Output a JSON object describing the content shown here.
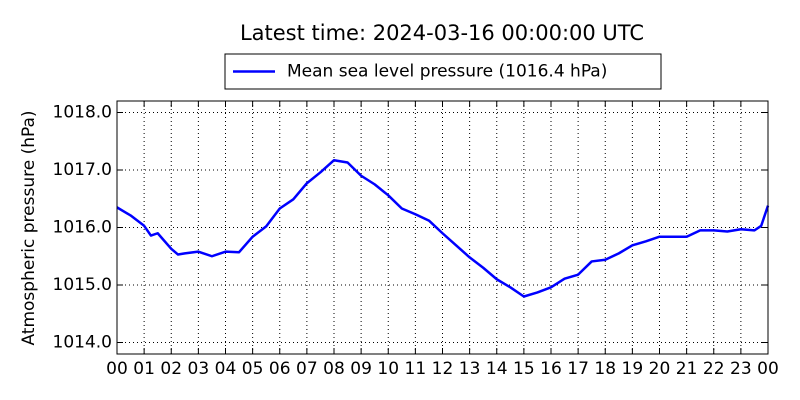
{
  "chart_data": {
    "type": "line",
    "title": "Latest time: 2024-03-16 00:00:00 UTC",
    "ylabel": "Atmospheric pressure (hPa)",
    "x": [
      0,
      0.5,
      1,
      1.25,
      1.5,
      2,
      2.25,
      2.5,
      3,
      3.5,
      4,
      4.5,
      5,
      5.5,
      6,
      6.5,
      7,
      7.5,
      8,
      8.5,
      9,
      9.5,
      10,
      10.5,
      11,
      11.5,
      12,
      12.5,
      13,
      13.5,
      14,
      14.5,
      15,
      15.5,
      16,
      16.5,
      17,
      17.5,
      18,
      18.5,
      19,
      19.5,
      20,
      20.5,
      21,
      21.5,
      22,
      22.5,
      23,
      23.5,
      23.75,
      24
    ],
    "series": [
      {
        "name": "Mean sea level pressure (1016.4 hPa)",
        "color": "#0000ff",
        "values": [
          1016.35,
          1016.21,
          1016.03,
          1015.86,
          1015.9,
          1015.63,
          1015.53,
          1015.55,
          1015.58,
          1015.5,
          1015.58,
          1015.57,
          1015.84,
          1016.02,
          1016.33,
          1016.49,
          1016.77,
          1016.96,
          1017.17,
          1017.13,
          1016.9,
          1016.75,
          1016.56,
          1016.33,
          1016.23,
          1016.12,
          1015.9,
          1015.69,
          1015.48,
          1015.3,
          1015.1,
          1014.96,
          1014.8,
          1014.87,
          1014.96,
          1015.11,
          1015.18,
          1015.41,
          1015.44,
          1015.55,
          1015.69,
          1015.76,
          1015.84,
          1015.84,
          1015.84,
          1015.95,
          1015.95,
          1015.93,
          1015.97,
          1015.95,
          1016.03,
          1016.38
        ]
      }
    ],
    "xlim": [
      0,
      24
    ],
    "xticks": [
      {
        "value": 0,
        "label": "00"
      },
      {
        "value": 1,
        "label": "01"
      },
      {
        "value": 2,
        "label": "02"
      },
      {
        "value": 3,
        "label": "03"
      },
      {
        "value": 4,
        "label": "04"
      },
      {
        "value": 5,
        "label": "05"
      },
      {
        "value": 6,
        "label": "06"
      },
      {
        "value": 7,
        "label": "07"
      },
      {
        "value": 8,
        "label": "08"
      },
      {
        "value": 9,
        "label": "09"
      },
      {
        "value": 10,
        "label": "10"
      },
      {
        "value": 11,
        "label": "11"
      },
      {
        "value": 12,
        "label": "12"
      },
      {
        "value": 13,
        "label": "13"
      },
      {
        "value": 14,
        "label": "14"
      },
      {
        "value": 15,
        "label": "15"
      },
      {
        "value": 16,
        "label": "16"
      },
      {
        "value": 17,
        "label": "17"
      },
      {
        "value": 18,
        "label": "18"
      },
      {
        "value": 19,
        "label": "19"
      },
      {
        "value": 20,
        "label": "20"
      },
      {
        "value": 21,
        "label": "21"
      },
      {
        "value": 22,
        "label": "22"
      },
      {
        "value": 23,
        "label": "23"
      },
      {
        "value": 24,
        "label": "00"
      }
    ],
    "ylim": [
      1013.8,
      1018.2
    ],
    "yticks": [
      {
        "value": 1014,
        "label": "1014.0"
      },
      {
        "value": 1015,
        "label": "1015.0"
      },
      {
        "value": 1016,
        "label": "1016.0"
      },
      {
        "value": 1017,
        "label": "1017.0"
      },
      {
        "value": 1018,
        "label": "1018.0"
      }
    ],
    "grid": true,
    "legend": "top"
  }
}
